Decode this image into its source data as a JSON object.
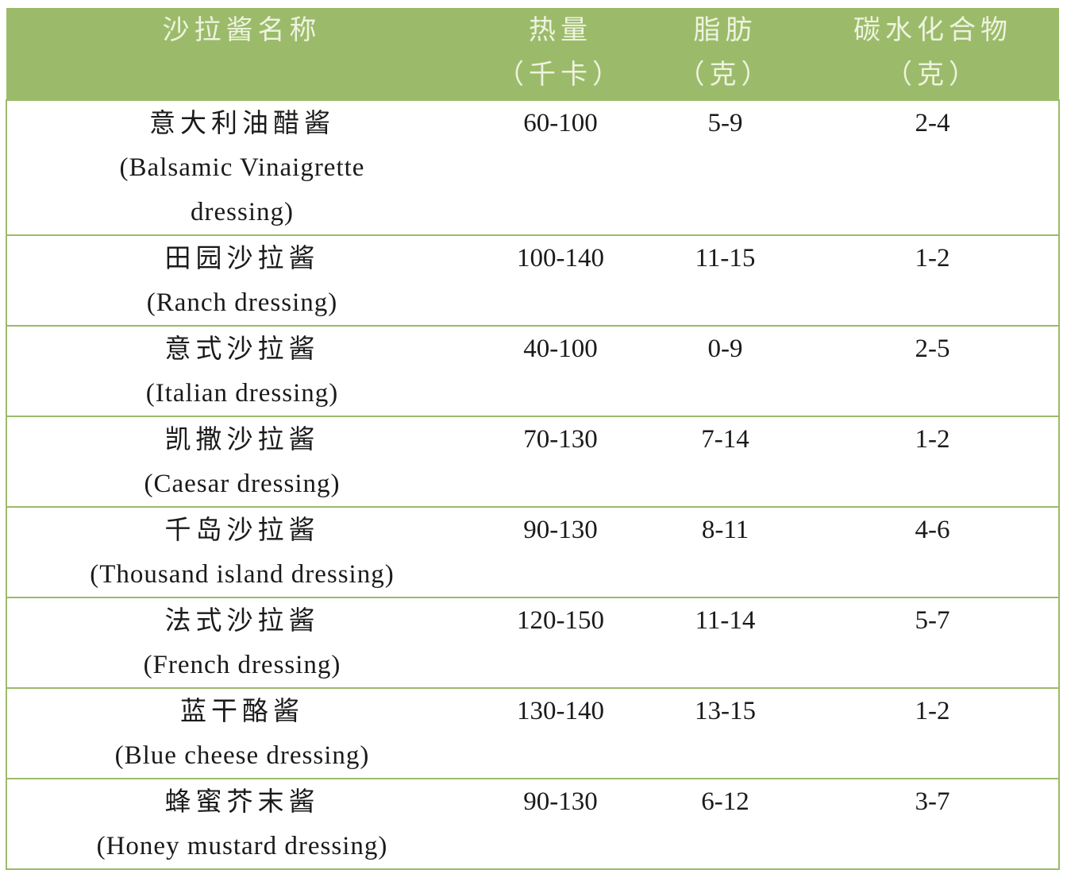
{
  "header_color": "#9bbb6a",
  "headers": [
    {
      "line1": "沙拉酱名称",
      "line2": ""
    },
    {
      "line1": "热量",
      "line2": "（千卡）"
    },
    {
      "line1": "脂肪",
      "line2": "（克）"
    },
    {
      "line1": "碳水化合物",
      "line2": "（克）"
    }
  ],
  "rows": [
    {
      "zh": "意大利油醋酱",
      "en": "(Balsamic Vinaigrette dressing)",
      "calories": "60-100",
      "fat": "5-9",
      "carbs": "2-4"
    },
    {
      "zh": "田园沙拉酱",
      "en": "(Ranch dressing)",
      "calories": "100-140",
      "fat": "11-15",
      "carbs": "1-2"
    },
    {
      "zh": "意式沙拉酱",
      "en": "(Italian dressing)",
      "calories": "40-100",
      "fat": "0-9",
      "carbs": "2-5"
    },
    {
      "zh": "凯撒沙拉酱",
      "en": "(Caesar dressing)",
      "calories": "70-130",
      "fat": "7-14",
      "carbs": "1-2"
    },
    {
      "zh": "千岛沙拉酱",
      "en": "(Thousand island dressing)",
      "calories": "90-130",
      "fat": "8-11",
      "carbs": "4-6"
    },
    {
      "zh": "法式沙拉酱",
      "en": "(French dressing)",
      "calories": "120-150",
      "fat": "11-14",
      "carbs": "5-7"
    },
    {
      "zh": "蓝干酪酱",
      "en": "(Blue cheese dressing)",
      "calories": "130-140",
      "fat": "13-15",
      "carbs": "1-2"
    },
    {
      "zh": "蜂蜜芥末酱",
      "en": "(Honey mustard dressing)",
      "calories": "90-130",
      "fat": "6-12",
      "carbs": "3-7"
    }
  ]
}
